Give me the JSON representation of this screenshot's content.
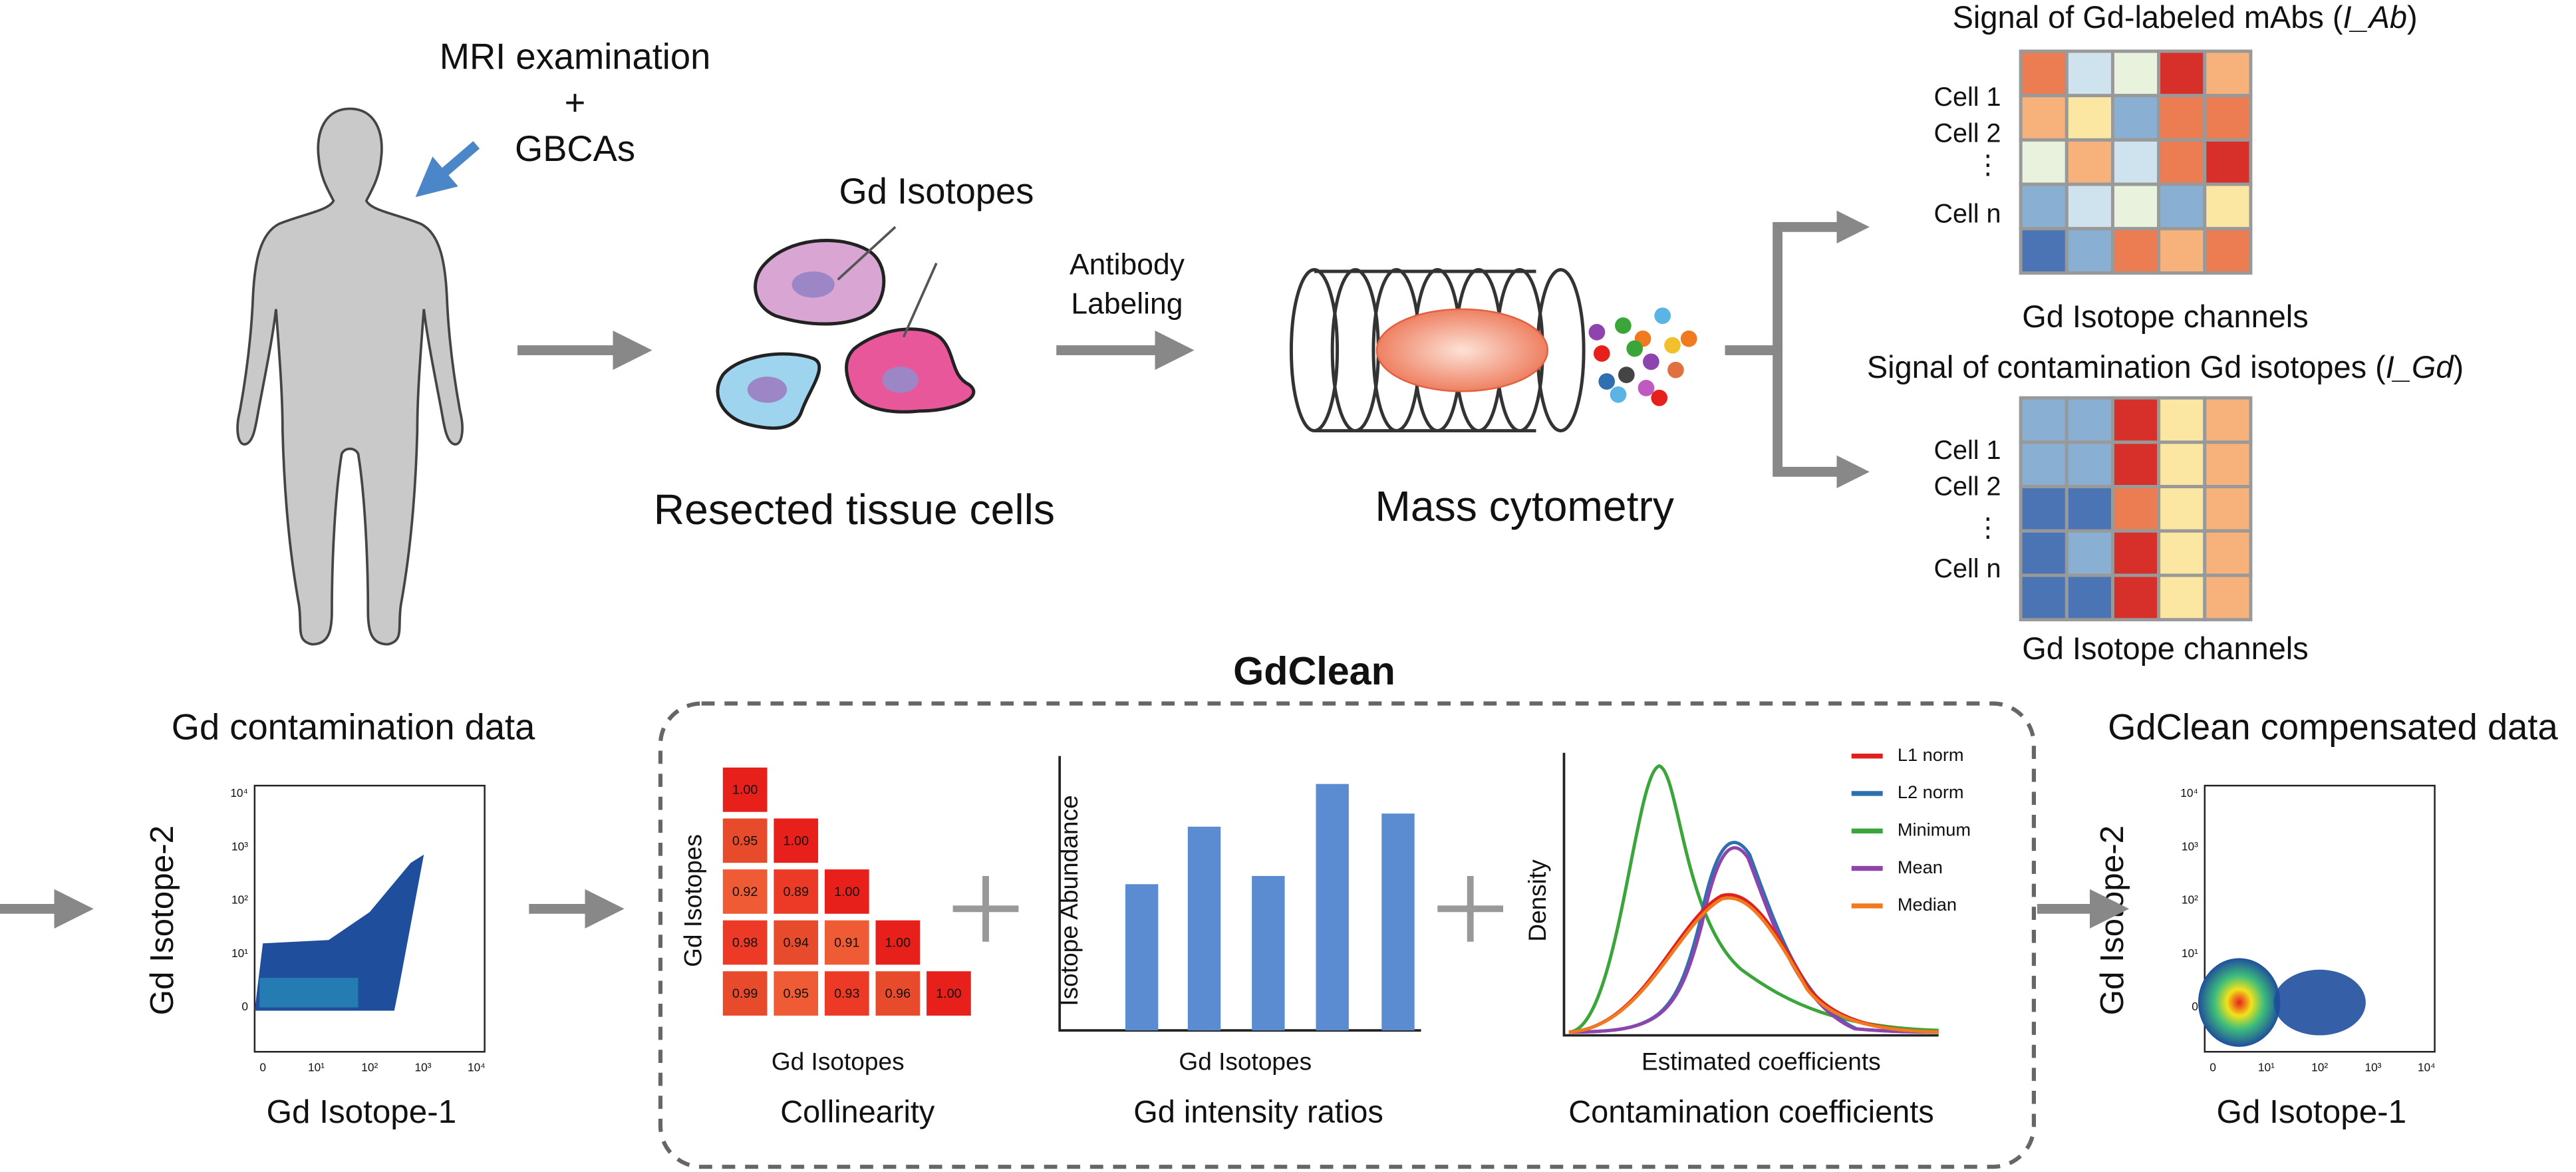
{
  "top": {
    "mri_line1": "MRI examination",
    "mri_plus": "+",
    "mri_line2": "GBCAs",
    "isotopes_label": "Gd Isotopes",
    "cells_caption": "Resected tissue cells",
    "antibody_line1": "Antibody",
    "antibody_line2": "Labeling",
    "cytometry_caption": "Mass cytometry"
  },
  "heatmap_ab": {
    "title_prefix": "Signal of Gd-labeled mAbs (",
    "title_italic": "I_Ab",
    "title_suffix": ")",
    "row_labels": [
      "Cell 1",
      "Cell 2",
      "⋮",
      "Cell n"
    ],
    "caption": "Gd Isotope channels"
  },
  "heatmap_gd": {
    "title_prefix": "Signal of contamination Gd isotopes (",
    "title_italic": "I_Gd",
    "title_suffix": ")",
    "row_labels": [
      "Cell 1",
      "Cell 2",
      "⋮",
      "Cell n"
    ],
    "caption": "Gd Isotope channels"
  },
  "gdclean": {
    "title": "GdClean",
    "collinearity": {
      "y_label": "Gd Isotopes",
      "x_label": "Gd Isotopes",
      "caption": "Collinearity",
      "rows": [
        [
          "1.00"
        ],
        [
          "0.95",
          "1.00"
        ],
        [
          "0.92",
          "0.89",
          "1.00"
        ],
        [
          "0.98",
          "0.94",
          "0.91",
          "1.00"
        ],
        [
          "0.99",
          "0.95",
          "0.93",
          "0.96",
          "1.00"
        ]
      ]
    },
    "ratios": {
      "y_label": "Isotope Abundance",
      "x_label": "Gd Isotopes",
      "caption": "Gd intensity ratios"
    },
    "coefficients": {
      "y_label": "Density",
      "x_label": "Estimated coefficients",
      "caption": "Contamination coefficients",
      "legend": [
        "L1 norm",
        "L2 norm",
        "Minimum",
        "Mean",
        "Median"
      ]
    }
  },
  "contamination_plot": {
    "title": "Gd contamination data",
    "x_label": "Gd Isotope-1",
    "y_label": "Gd Isotope-2",
    "ticks": [
      "0",
      "10¹",
      "10²",
      "10³",
      "10⁴"
    ]
  },
  "compensated_plot": {
    "title": "GdClean compensated data",
    "x_label": "Gd Isotope-1",
    "y_label": "Gd Isotope-2",
    "ticks": [
      "0",
      "10¹",
      "10²",
      "10³",
      "10⁴"
    ]
  }
}
